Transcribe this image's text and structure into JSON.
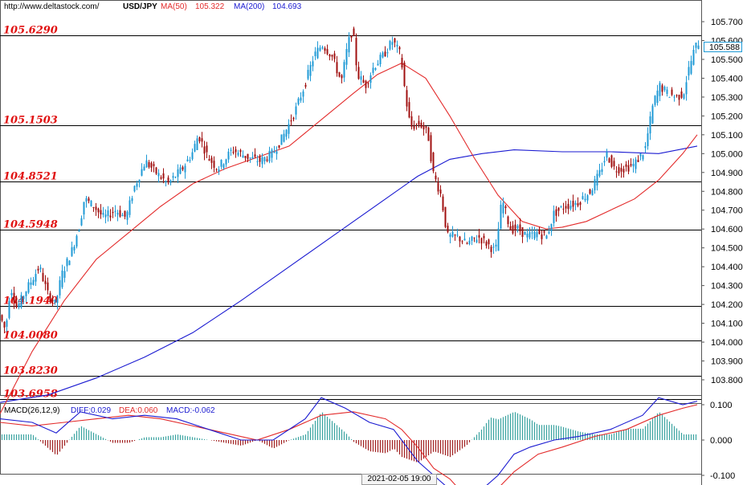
{
  "header": {
    "url": "http://www.deltastock.com/",
    "pair": "USD/JPY",
    "ma50_label": "MA(50)",
    "ma50_value": "105.322",
    "ma200_label": "MA(200)",
    "ma200_value": "104.693"
  },
  "macd_header": {
    "label": "MACD(26,12,9)",
    "diff": "DIFF:0.029",
    "dea": "DEA:0.060",
    "macd": "MACD:-0.062"
  },
  "colors": {
    "bull": "#1f9ad6",
    "bear": "#a01010",
    "ma50": "#e32b2b",
    "ma200": "#1a1ad1",
    "level_text": "#e01010",
    "diff_line": "#1a1ad1",
    "dea_line": "#e32b2b",
    "hist_pos": "#3aa3a0",
    "hist_neg": "#a02020"
  },
  "chart_data": {
    "type": "candlestick",
    "instrument": "USD/JPY",
    "ylim": [
      103.68,
      105.77
    ],
    "yticks": [
      "105.700",
      "105.600",
      "105.500",
      "105.400",
      "105.300",
      "105.200",
      "105.100",
      "105.000",
      "104.900",
      "104.800",
      "104.700",
      "104.600",
      "104.500",
      "104.400",
      "104.300",
      "104.200",
      "104.100",
      "104.000",
      "103.900",
      "103.800"
    ],
    "yticks_values": [
      105.7,
      105.6,
      105.5,
      105.4,
      105.3,
      105.2,
      105.1,
      105.0,
      104.9,
      104.8,
      104.7,
      104.6,
      104.5,
      104.4,
      104.3,
      104.2,
      104.1,
      104.0,
      103.9,
      103.8
    ],
    "current_price": "105.588",
    "date_label": "2021-02-05 19:00",
    "horizontal_levels": [
      {
        "label": "105.6290",
        "value": 105.629
      },
      {
        "label": "105.1503",
        "value": 105.1503
      },
      {
        "label": "104.8521",
        "value": 104.8521
      },
      {
        "label": "104.5948",
        "value": 104.5948
      },
      {
        "label": "104.1940",
        "value": 104.194
      },
      {
        "label": "104.0080",
        "value": 104.008
      },
      {
        "label": "103.8230",
        "value": 103.823
      },
      {
        "label": "103.6958",
        "value": 103.6958
      }
    ],
    "price_path": [
      [
        0,
        104.15
      ],
      [
        8,
        104.06
      ],
      [
        14,
        104.3
      ],
      [
        22,
        104.18
      ],
      [
        34,
        104.28
      ],
      [
        50,
        104.4
      ],
      [
        60,
        104.26
      ],
      [
        70,
        104.2
      ],
      [
        78,
        104.36
      ],
      [
        90,
        104.48
      ],
      [
        100,
        104.62
      ],
      [
        106,
        104.76
      ],
      [
        118,
        104.72
      ],
      [
        130,
        104.66
      ],
      [
        145,
        104.7
      ],
      [
        158,
        104.66
      ],
      [
        168,
        104.82
      ],
      [
        182,
        104.96
      ],
      [
        195,
        104.9
      ],
      [
        210,
        104.84
      ],
      [
        228,
        104.92
      ],
      [
        240,
        105.0
      ],
      [
        248,
        105.1
      ],
      [
        260,
        104.98
      ],
      [
        272,
        104.92
      ],
      [
        290,
        105.02
      ],
      [
        310,
        104.98
      ],
      [
        325,
        104.96
      ],
      [
        340,
        105.0
      ],
      [
        352,
        105.08
      ],
      [
        368,
        105.22
      ],
      [
        380,
        105.36
      ],
      [
        392,
        105.52
      ],
      [
        402,
        105.58
      ],
      [
        414,
        105.52
      ],
      [
        426,
        105.38
      ],
      [
        434,
        105.58
      ],
      [
        440,
        105.66
      ],
      [
        446,
        105.42
      ],
      [
        456,
        105.36
      ],
      [
        466,
        105.46
      ],
      [
        478,
        105.52
      ],
      [
        490,
        105.6
      ],
      [
        500,
        105.52
      ],
      [
        506,
        105.3
      ],
      [
        512,
        105.14
      ],
      [
        524,
        105.16
      ],
      [
        534,
        105.1
      ],
      [
        540,
        104.9
      ],
      [
        550,
        104.78
      ],
      [
        558,
        104.56
      ],
      [
        570,
        104.56
      ],
      [
        582,
        104.52
      ],
      [
        596,
        104.56
      ],
      [
        608,
        104.52
      ],
      [
        618,
        104.48
      ],
      [
        626,
        104.76
      ],
      [
        636,
        104.6
      ],
      [
        646,
        104.6
      ],
      [
        658,
        104.56
      ],
      [
        670,
        104.58
      ],
      [
        682,
        104.56
      ],
      [
        690,
        104.68
      ],
      [
        704,
        104.72
      ],
      [
        720,
        104.74
      ],
      [
        736,
        104.8
      ],
      [
        748,
        104.9
      ],
      [
        756,
        105.0
      ],
      [
        766,
        104.92
      ],
      [
        778,
        104.92
      ],
      [
        790,
        104.94
      ],
      [
        804,
        105.02
      ],
      [
        814,
        105.26
      ],
      [
        822,
        105.36
      ],
      [
        832,
        105.32
      ],
      [
        844,
        105.3
      ],
      [
        852,
        105.32
      ],
      [
        858,
        105.44
      ],
      [
        866,
        105.56
      ],
      [
        870,
        105.59
      ]
    ],
    "ma50": [
      [
        0,
        103.62
      ],
      [
        40,
        103.95
      ],
      [
        80,
        104.22
      ],
      [
        120,
        104.44
      ],
      [
        160,
        104.58
      ],
      [
        200,
        104.72
      ],
      [
        240,
        104.84
      ],
      [
        280,
        104.92
      ],
      [
        320,
        104.98
      ],
      [
        360,
        105.04
      ],
      [
        400,
        105.18
      ],
      [
        440,
        105.32
      ],
      [
        470,
        105.42
      ],
      [
        500,
        105.48
      ],
      [
        530,
        105.4
      ],
      [
        560,
        105.2
      ],
      [
        590,
        104.98
      ],
      [
        620,
        104.78
      ],
      [
        650,
        104.64
      ],
      [
        680,
        104.6
      ],
      [
        700,
        104.61
      ],
      [
        730,
        104.64
      ],
      [
        760,
        104.7
      ],
      [
        790,
        104.76
      ],
      [
        820,
        104.86
      ],
      [
        850,
        105.0
      ],
      [
        868,
        105.1
      ]
    ],
    "ma200": [
      [
        0,
        103.68
      ],
      [
        60,
        103.72
      ],
      [
        120,
        103.81
      ],
      [
        180,
        103.92
      ],
      [
        240,
        104.05
      ],
      [
        300,
        104.22
      ],
      [
        360,
        104.4
      ],
      [
        420,
        104.58
      ],
      [
        480,
        104.76
      ],
      [
        520,
        104.88
      ],
      [
        560,
        104.97
      ],
      [
        600,
        105.0
      ],
      [
        640,
        105.02
      ],
      [
        700,
        105.01
      ],
      [
        760,
        105.01
      ],
      [
        820,
        105.0
      ],
      [
        868,
        105.04
      ]
    ]
  },
  "macd_data": {
    "ylim": [
      -0.17,
      0.15
    ],
    "yticks": [
      "0.100",
      "0.000",
      "-0.100"
    ],
    "yticks_values": [
      0.1,
      0.0,
      -0.1
    ],
    "diff": [
      [
        0,
        0.06
      ],
      [
        40,
        0.05
      ],
      [
        70,
        0.02
      ],
      [
        100,
        0.08
      ],
      [
        140,
        0.06
      ],
      [
        180,
        0.07
      ],
      [
        220,
        0.06
      ],
      [
        260,
        0.03
      ],
      [
        300,
        0.0
      ],
      [
        340,
        0.0
      ],
      [
        380,
        0.06
      ],
      [
        400,
        0.12
      ],
      [
        430,
        0.09
      ],
      [
        460,
        0.05
      ],
      [
        490,
        0.03
      ],
      [
        500,
        0.0
      ],
      [
        520,
        -0.06
      ],
      [
        540,
        -0.1
      ],
      [
        560,
        -0.14
      ],
      [
        580,
        -0.17
      ],
      [
        600,
        -0.14
      ],
      [
        620,
        -0.1
      ],
      [
        640,
        -0.04
      ],
      [
        660,
        -0.02
      ],
      [
        690,
        0.0
      ],
      [
        720,
        0.01
      ],
      [
        760,
        0.03
      ],
      [
        800,
        0.07
      ],
      [
        820,
        0.12
      ],
      [
        850,
        0.1
      ],
      [
        868,
        0.11
      ]
    ],
    "dea": [
      [
        0,
        0.05
      ],
      [
        40,
        0.04
      ],
      [
        80,
        0.05
      ],
      [
        120,
        0.06
      ],
      [
        160,
        0.07
      ],
      [
        200,
        0.06
      ],
      [
        240,
        0.04
      ],
      [
        280,
        0.02
      ],
      [
        320,
        0.0
      ],
      [
        360,
        0.03
      ],
      [
        400,
        0.07
      ],
      [
        440,
        0.08
      ],
      [
        480,
        0.06
      ],
      [
        500,
        0.03
      ],
      [
        520,
        -0.02
      ],
      [
        540,
        -0.08
      ],
      [
        560,
        -0.11
      ],
      [
        580,
        -0.16
      ],
      [
        610,
        -0.16
      ],
      [
        640,
        -0.09
      ],
      [
        670,
        -0.04
      ],
      [
        700,
        -0.02
      ],
      [
        740,
        0.01
      ],
      [
        780,
        0.03
      ],
      [
        820,
        0.07
      ],
      [
        850,
        0.09
      ],
      [
        868,
        0.1
      ]
    ]
  }
}
